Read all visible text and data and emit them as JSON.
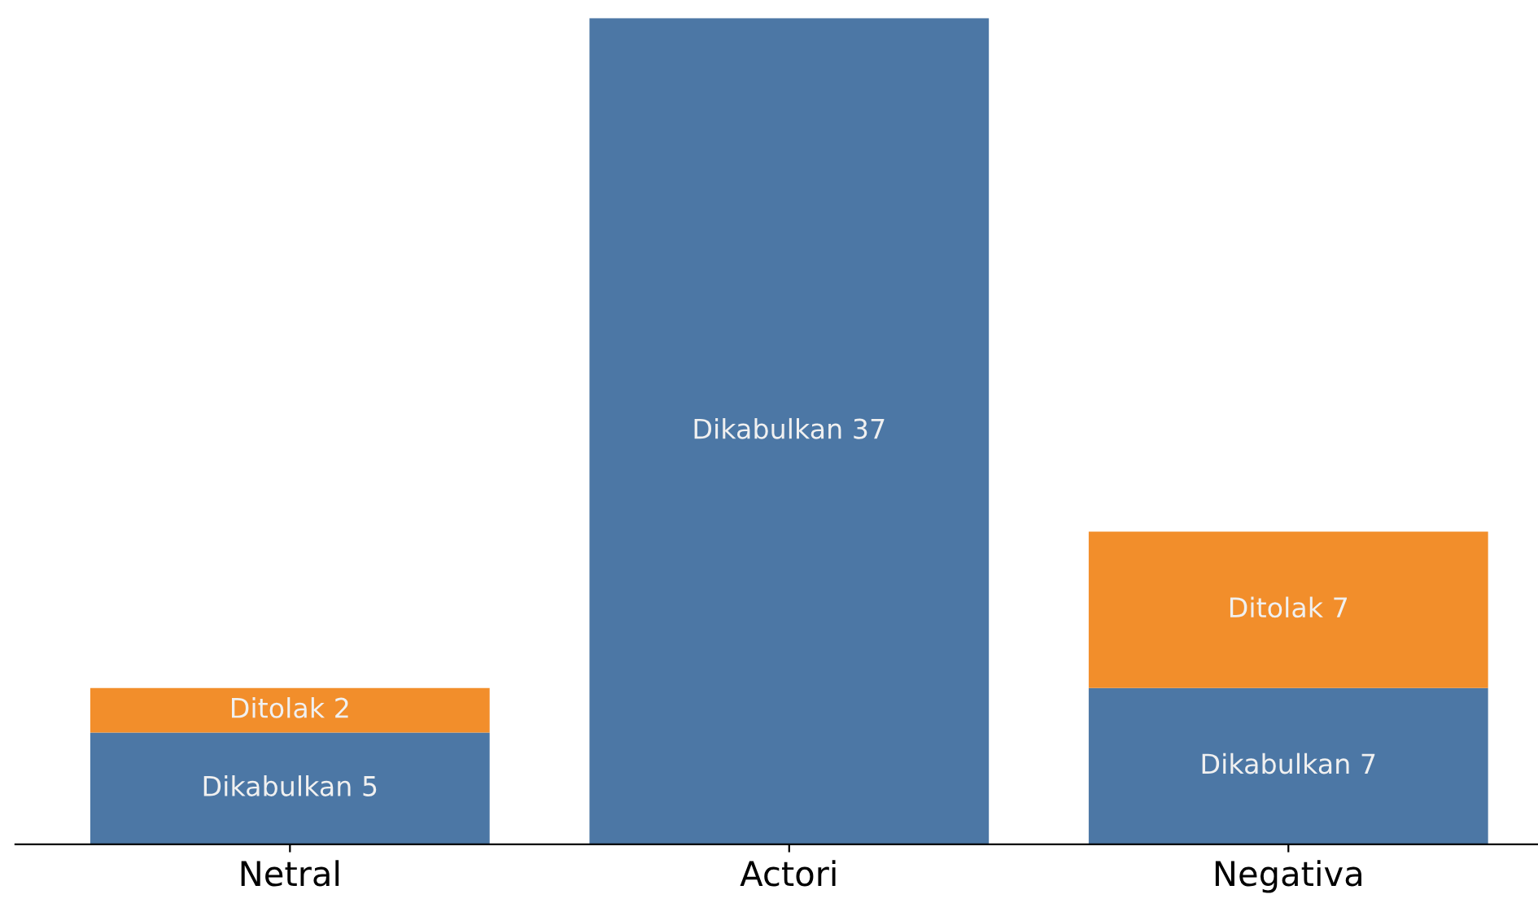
{
  "chart_data": {
    "type": "bar",
    "stacked": true,
    "categories": [
      "Netral",
      "Actori",
      "Negativa"
    ],
    "series": [
      {
        "color": "#4c77a5",
        "values": [
          5,
          37,
          7
        ],
        "value_labels": [
          "Dikabulkan 5",
          "Dikabulkan 37",
          "Dikabulkan 7"
        ]
      },
      {
        "color": "#f28e2b",
        "values": [
          2,
          null,
          7
        ],
        "value_labels": [
          "Ditolak 2",
          null,
          "Ditolak 7"
        ]
      }
    ],
    "grid": false,
    "legend": false
  }
}
